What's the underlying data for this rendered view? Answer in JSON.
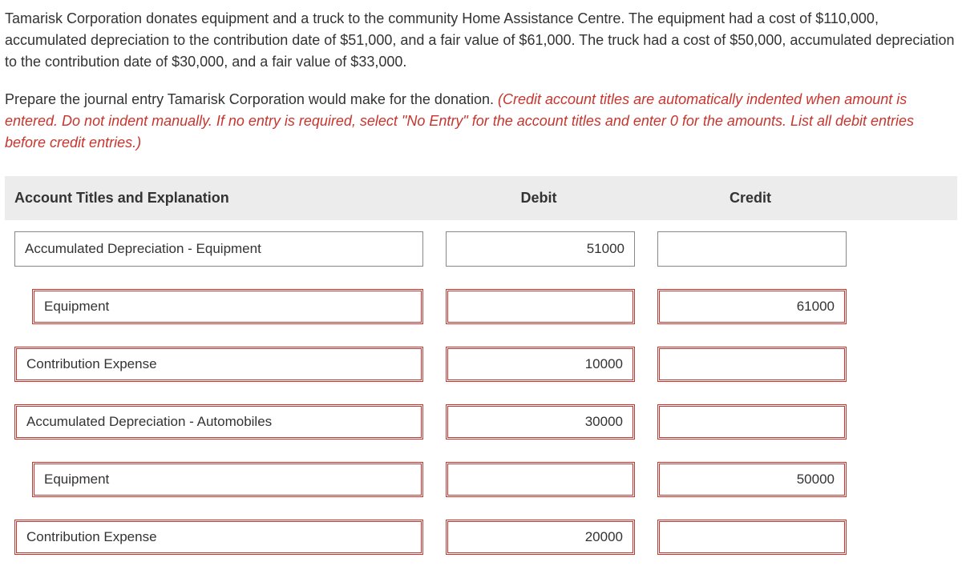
{
  "problem": {
    "para1": "Tamarisk Corporation donates equipment and a truck to the community Home Assistance Centre. The equipment had a cost of $110,000, accumulated depreciation to the contribution date of $51,000, and a fair value of $61,000. The truck had a cost of $50,000, accumulated depreciation to the contribution date of $30,000, and a fair value of $33,000.",
    "para2_black": "Prepare the journal entry Tamarisk Corporation would make for the donation. ",
    "para2_red": "(Credit account titles are automatically indented when amount is entered. Do not indent manually. If no entry is required, select \"No Entry\" for the account titles and enter 0 for the amounts. List all debit entries before credit entries.)"
  },
  "headers": {
    "account": "Account Titles and Explanation",
    "debit": "Debit",
    "credit": "Credit"
  },
  "rows": [
    {
      "account": "Accumulated Depreciation - Equipment",
      "debit": "51000",
      "credit": "",
      "accountDouble": false,
      "debitDouble": false,
      "creditDouble": false,
      "indent": 0
    },
    {
      "account": "Equipment",
      "debit": "",
      "credit": "61000",
      "accountDouble": true,
      "debitDouble": true,
      "creditDouble": true,
      "indent": 1
    },
    {
      "account": "Contribution Expense",
      "debit": "10000",
      "credit": "",
      "accountDouble": true,
      "debitDouble": true,
      "creditDouble": true,
      "indent": 0
    },
    {
      "account": "Accumulated Depreciation - Automobiles",
      "debit": "30000",
      "credit": "",
      "accountDouble": true,
      "debitDouble": true,
      "creditDouble": true,
      "indent": 0
    },
    {
      "account": "Equipment",
      "debit": "",
      "credit": "50000",
      "accountDouble": true,
      "debitDouble": true,
      "creditDouble": true,
      "indent": 1
    },
    {
      "account": "Contribution Expense",
      "debit": "20000",
      "credit": "",
      "accountDouble": true,
      "debitDouble": true,
      "creditDouble": true,
      "indent": 0
    }
  ],
  "colors": {
    "redText": "#c7352e",
    "headerBg": "#ececec",
    "border": "#888888"
  }
}
